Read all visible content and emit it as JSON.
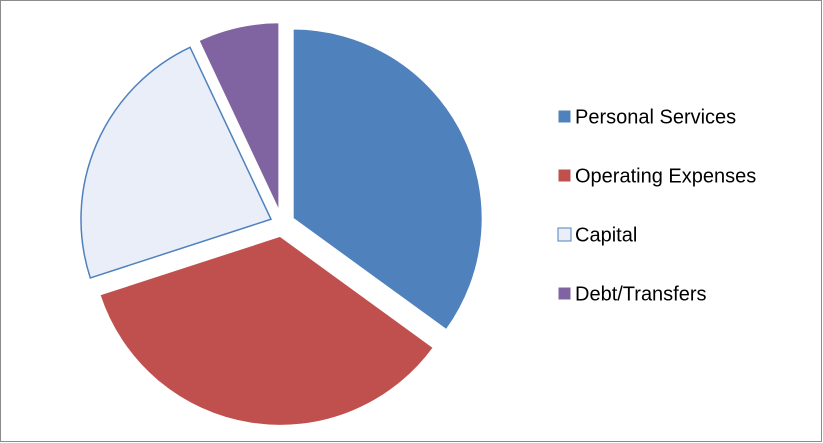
{
  "chart_data": {
    "type": "pie",
    "categories": [
      "Personal Services",
      "Operating Expenses",
      "Capital",
      "Debt/Transfers"
    ],
    "values": [
      35,
      35,
      23,
      7
    ],
    "colors": [
      "#4f81bd",
      "#c0504d",
      "#e9eef8",
      "#8064a2"
    ],
    "legend": "right"
  }
}
